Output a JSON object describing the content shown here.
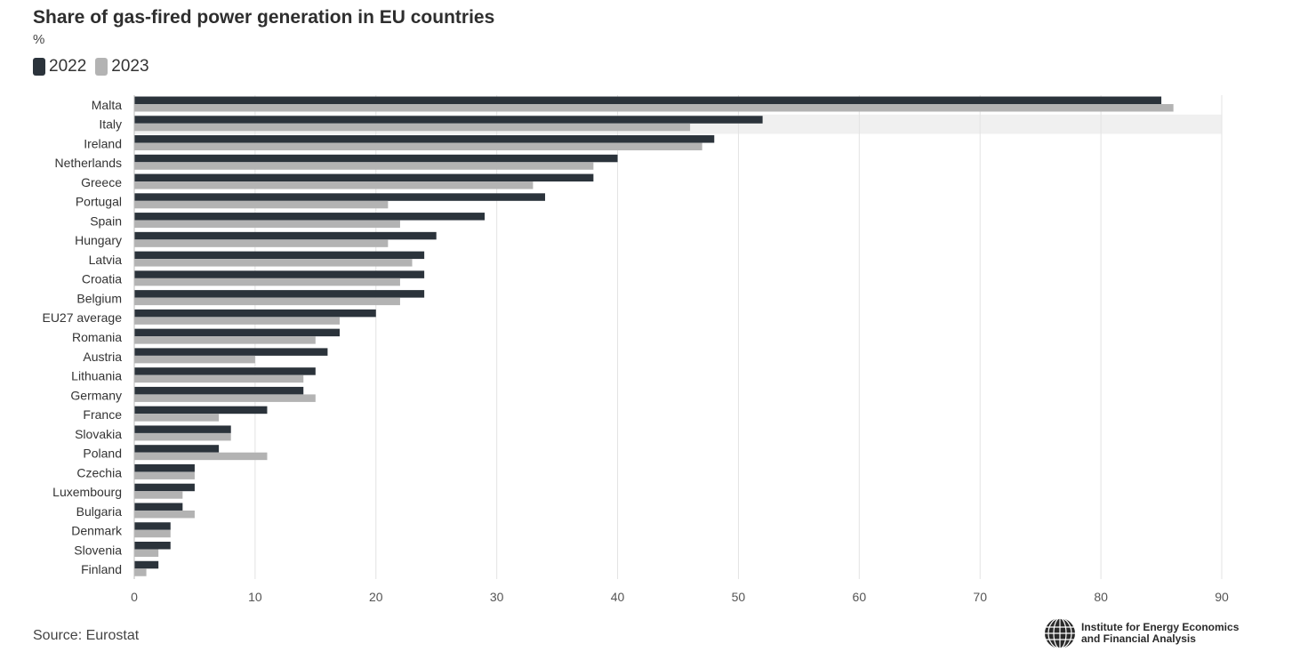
{
  "chart_data": {
    "type": "bar",
    "orientation": "horizontal",
    "title": "Share of gas-fired power generation in EU countries",
    "subtitle": "%",
    "categories": [
      "Malta",
      "Italy",
      "Ireland",
      "Netherlands",
      "Greece",
      "Portugal",
      "Spain",
      "Hungary",
      "Latvia",
      "Croatia",
      "Belgium",
      "EU27 average",
      "Romania",
      "Austria",
      "Lithuania",
      "Germany",
      "France",
      "Slovakia",
      "Poland",
      "Czechia",
      "Luxembourg",
      "Bulgaria",
      "Denmark",
      "Slovenia",
      "Finland"
    ],
    "series": [
      {
        "name": "2022",
        "color": "#2b333b",
        "values": [
          85,
          52,
          48,
          40,
          38,
          34,
          29,
          25,
          24,
          24,
          24,
          20,
          17,
          16,
          15,
          14,
          11,
          8,
          7,
          5,
          5,
          4,
          3,
          3,
          2
        ]
      },
      {
        "name": "2023",
        "color": "#b3b3b3",
        "values": [
          86,
          46,
          47,
          38,
          33,
          21,
          22,
          21,
          23,
          22,
          22,
          17,
          15,
          10,
          14,
          15,
          7,
          8,
          11,
          5,
          4,
          5,
          3,
          2,
          1
        ]
      }
    ],
    "xlim": [
      0,
      90
    ],
    "xticks": [
      0,
      10,
      20,
      30,
      40,
      50,
      60,
      70,
      80,
      90
    ],
    "grid": true,
    "legend_position": "top-left",
    "highlighted_category": "Italy"
  },
  "footer": {
    "source": "Source: Eurostat",
    "logo_text_line1": "Institute for Energy Economics",
    "logo_text_line2": "and Financial Analysis",
    "logo_icon": "globe-icon"
  }
}
